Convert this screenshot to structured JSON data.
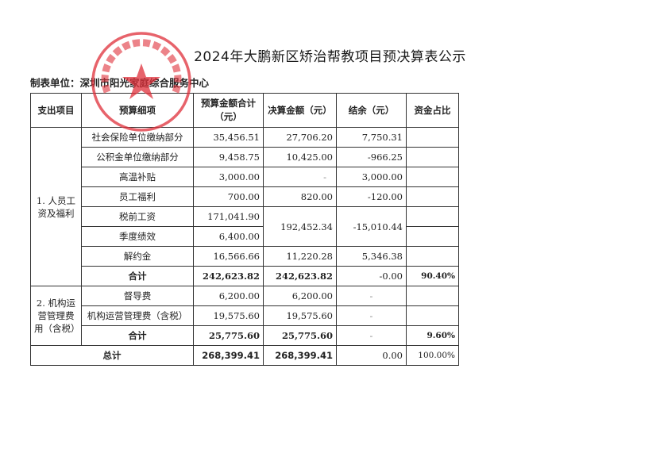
{
  "title": "2024年大鹏新区矫治帮教项目预决算表公示",
  "unit_label": "制表单位：深圳市阳光家庭综合服务中心",
  "stamp_text": "深圳市阳光家庭综合服务中心",
  "stamp_color": "#e0303a",
  "headers": [
    "支出项目",
    "预算细项",
    "预算金额合计（元）",
    "决算金额（元）",
    "结余（元）",
    "资金占比"
  ],
  "group1": {
    "category": "1. 人员工资及福利",
    "rows": [
      {
        "item": "社会保险单位缴纳部分",
        "budget": "35,456.51",
        "actual": "27,706.20",
        "balance": "7,750.31"
      },
      {
        "item": "公积金单位缴纳部分",
        "budget": "9,458.75",
        "actual": "10,425.00",
        "balance": "-966.25"
      },
      {
        "item": "高温补贴",
        "budget": "3,000.00",
        "actual": "-",
        "balance": "3,000.00"
      },
      {
        "item": "员工福利",
        "budget": "700.00",
        "actual": "820.00",
        "balance": "-120.00"
      },
      {
        "item": "税前工资",
        "budget": "171,041.90",
        "actual": "192,452.34",
        "balance": "-15,010.44"
      },
      {
        "item": "季度绩效",
        "budget": "6,400.00"
      },
      {
        "item": "解约金",
        "budget": "16,566.66",
        "actual": "11,220.28",
        "balance": "5,346.38"
      }
    ],
    "subtotal": {
      "label": "合计",
      "budget": "242,623.82",
      "actual": "242,623.82",
      "balance": "-0.00",
      "ratio": "90.40%"
    }
  },
  "group2": {
    "category": "2. 机构运营管理费用（含税）",
    "rows": [
      {
        "item": "督导费",
        "budget": "6,200.00",
        "actual": "6,200.00",
        "balance": "-"
      },
      {
        "item": "机构运营管理费（含税）",
        "budget": "19,575.60",
        "actual": "19,575.60",
        "balance": "-"
      }
    ],
    "subtotal": {
      "label": "合计",
      "budget": "25,775.60",
      "actual": "25,775.60",
      "balance": "-",
      "ratio": "9.60%"
    }
  },
  "total": {
    "label": "总计",
    "budget": "268,399.41",
    "actual": "268,399.41",
    "balance": "0.00",
    "ratio": "100.00%"
  }
}
